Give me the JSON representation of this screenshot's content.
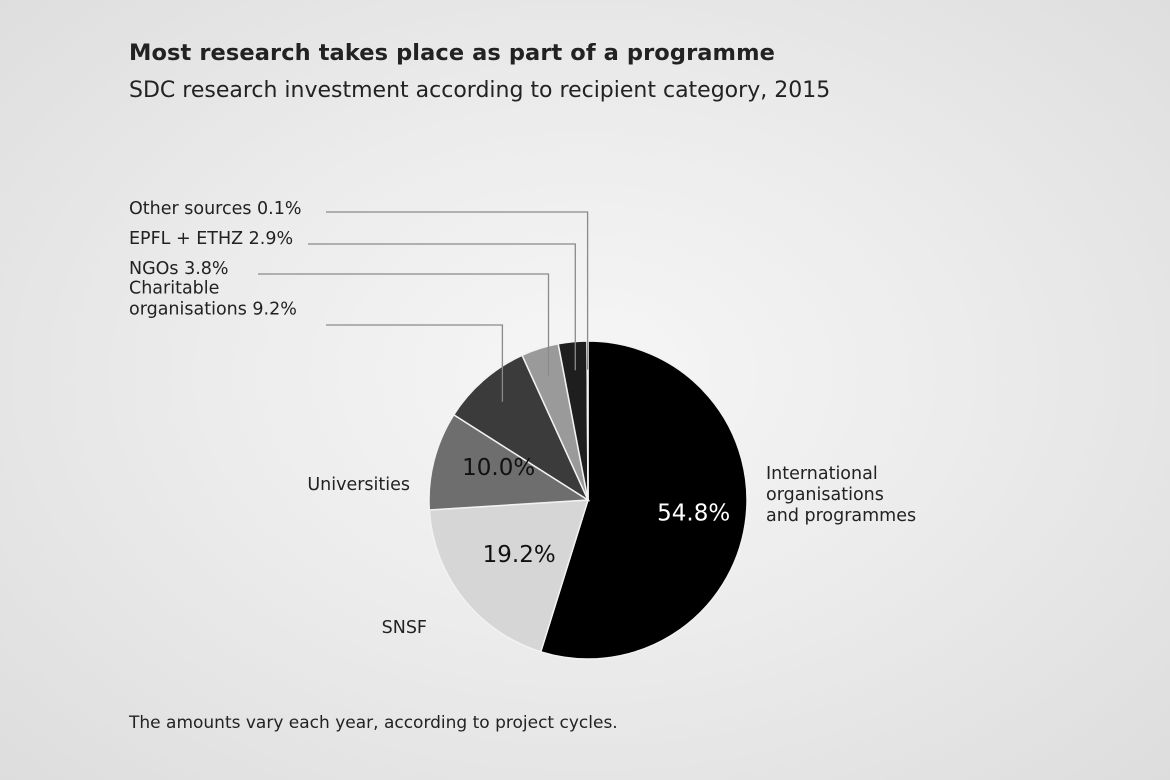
{
  "chart_data": {
    "type": "pie",
    "title": "Most research takes place as part of a programme",
    "subtitle": "SDC research investment according to recipient category, 2015",
    "note": "The amounts vary each year, according to project cycles.",
    "slices": [
      {
        "label": "International organisations and programmes",
        "label_lines": [
          "International",
          "organisations",
          "and programmes"
        ],
        "value": 54.8,
        "value_label": "54.8%",
        "color": "#000000",
        "value_color": "#ffffff"
      },
      {
        "label": "SNSF",
        "label_lines": [
          "SNSF"
        ],
        "value": 19.2,
        "value_label": "19.2%",
        "color": "#d6d6d6",
        "value_color": "#111111"
      },
      {
        "label": "Universities",
        "label_lines": [
          "Universities"
        ],
        "value": 10.0,
        "value_label": "10.0%",
        "color": "#6e6e6e",
        "value_color": "#111111"
      },
      {
        "label": "Charitable organisations 9.2%",
        "label_lines": [
          "Charitable",
          "organisations 9.2%"
        ],
        "value": 9.2,
        "value_label": "",
        "color": "#3b3b3b"
      },
      {
        "label": "NGOs 3.8%",
        "label_lines": [
          "NGOs 3.8%"
        ],
        "value": 3.8,
        "value_label": "",
        "color": "#9a9a9a"
      },
      {
        "label": "EPFL + ETHZ 2.9%",
        "label_lines": [
          "EPFL + ETHZ 2.9%"
        ],
        "value": 2.9,
        "value_label": "",
        "color": "#1e1e1e"
      },
      {
        "label": "Other sources 0.1%",
        "label_lines": [
          "Other sources 0.1%"
        ],
        "value": 0.1,
        "value_label": "",
        "color": "#b0b0b0"
      }
    ]
  }
}
